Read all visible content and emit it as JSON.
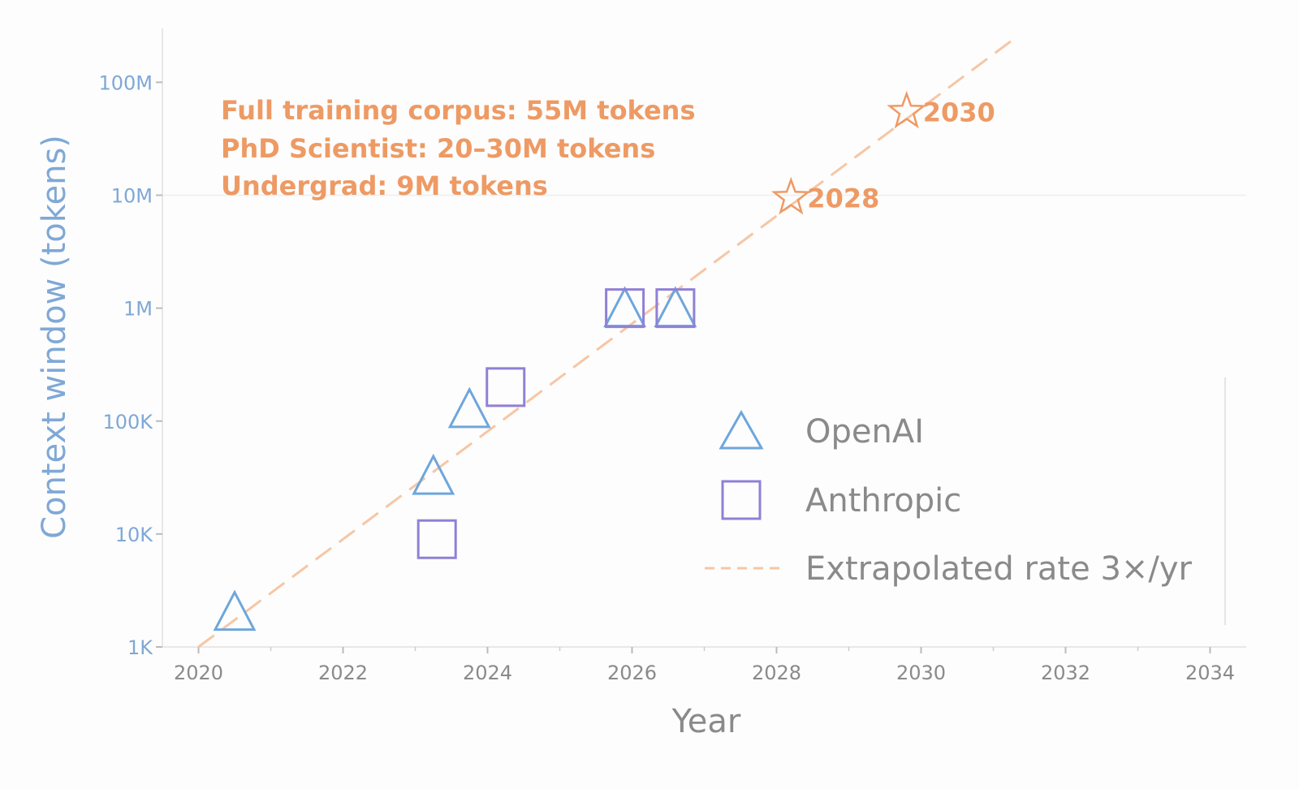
{
  "chart_data": {
    "type": "scatter",
    "title": "",
    "xlabel": "Year",
    "ylabel": "Context window (tokens)",
    "x_ticks": [
      "2020",
      "2022",
      "2024",
      "2026",
      "2028",
      "2030",
      "2032",
      "2034"
    ],
    "y_ticks": [
      "1K",
      "10K",
      "100K",
      "1M",
      "10M",
      "100M"
    ],
    "xlim": [
      2019.5,
      2034.5
    ],
    "ylim": [
      1000,
      300000000
    ],
    "y_scale": "log",
    "grid": false,
    "series": [
      {
        "name": "OpenAI",
        "marker": "triangle",
        "color": "#6ea6dc",
        "points": [
          {
            "x": 2020.5,
            "y": 2048
          },
          {
            "x": 2023.25,
            "y": 32768
          },
          {
            "x": 2023.75,
            "y": 128000
          },
          {
            "x": 2025.9,
            "y": 1000000
          },
          {
            "x": 2026.6,
            "y": 1000000
          }
        ]
      },
      {
        "name": "Anthropic",
        "marker": "square",
        "color": "#9080d6",
        "points": [
          {
            "x": 2023.3,
            "y": 9000
          },
          {
            "x": 2024.25,
            "y": 200000
          },
          {
            "x": 2025.9,
            "y": 1000000
          },
          {
            "x": 2026.6,
            "y": 1000000
          }
        ]
      },
      {
        "name": "Extrapolated rate 3×/yr",
        "marker": "dashed-line",
        "color": "#f6c6a4",
        "points": [
          {
            "x": 2020.0,
            "y": 1000
          },
          {
            "x": 2031.25,
            "y": 233000000
          }
        ]
      }
    ],
    "projections": [
      {
        "label": "2028",
        "x": 2028.2,
        "y": 9500000
      },
      {
        "label": "2030",
        "x": 2029.8,
        "y": 55000000
      }
    ],
    "annotations": [
      "Full training corpus: 55M tokens",
      "PhD Scientist: 20–30M tokens",
      "Undergrad: 9M tokens"
    ],
    "legend_position": "bottom-right",
    "colors": {
      "openai": "#6ea6dc",
      "anthropic": "#9080d6",
      "extrapolation": "#f6c6a4",
      "annotation": "#ee9a64",
      "ylabel": "#7fa8d6",
      "axis_text": "#8a8a8a"
    }
  }
}
